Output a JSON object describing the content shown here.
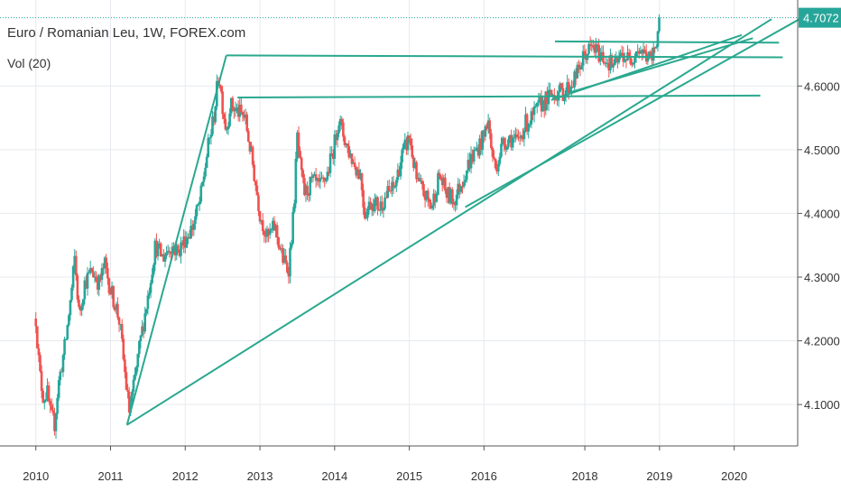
{
  "header": {
    "title": "Euro / Romanian Leu, 1W, FOREX.com",
    "indicator": "Vol (20)"
  },
  "chart_data": {
    "type": "candlestick",
    "symbol": "Euro / Romanian Leu",
    "interval": "1W",
    "source": "FOREX.com",
    "x_tick_labels": [
      "2010",
      "2011",
      "2012",
      "2013",
      "2014",
      "2015",
      "2016",
      "2018",
      "2019",
      "2020"
    ],
    "x_ticks": [
      2010.0,
      2011.0,
      2012.0,
      2013.0,
      2014.0,
      2015.0,
      2016.0,
      2017.35,
      2018.35,
      2019.35
    ],
    "y_ticks": [
      4.1,
      4.2,
      4.3,
      4.4,
      4.5,
      4.6
    ],
    "y_tick_labels": [
      "4.1000",
      "4.2000",
      "4.3000",
      "4.4000",
      "4.5000",
      "4.6000"
    ],
    "xlim": [
      2009.52,
      2020.2
    ],
    "ylim": [
      4.035,
      4.735
    ],
    "grid": true,
    "last_price": 4.7072,
    "last_price_label": "4.7072",
    "colors": {
      "up": "#26a69a",
      "down": "#ef5350",
      "lines": "#2aa88f",
      "grid": "#e6eaee",
      "price_tag": "#26a69a"
    },
    "price_path": [
      [
        2010.0,
        4.235
      ],
      [
        2010.05,
        4.15
      ],
      [
        2010.1,
        4.11
      ],
      [
        2010.15,
        4.12
      ],
      [
        2010.2,
        4.08
      ],
      [
        2010.25,
        4.07
      ],
      [
        2010.3,
        4.13
      ],
      [
        2010.4,
        4.2
      ],
      [
        2010.48,
        4.28
      ],
      [
        2010.52,
        4.33
      ],
      [
        2010.58,
        4.24
      ],
      [
        2010.65,
        4.29
      ],
      [
        2010.75,
        4.31
      ],
      [
        2010.85,
        4.29
      ],
      [
        2010.92,
        4.32
      ],
      [
        2011.0,
        4.28
      ],
      [
        2011.08,
        4.25
      ],
      [
        2011.12,
        4.23
      ],
      [
        2011.2,
        4.14
      ],
      [
        2011.25,
        4.09
      ],
      [
        2011.3,
        4.12
      ],
      [
        2011.4,
        4.2
      ],
      [
        2011.5,
        4.27
      ],
      [
        2011.6,
        4.35
      ],
      [
        2011.7,
        4.33
      ],
      [
        2011.8,
        4.35
      ],
      [
        2011.9,
        4.34
      ],
      [
        2012.0,
        4.36
      ],
      [
        2012.1,
        4.38
      ],
      [
        2012.2,
        4.42
      ],
      [
        2012.3,
        4.5
      ],
      [
        2012.38,
        4.55
      ],
      [
        2012.45,
        4.62
      ],
      [
        2012.5,
        4.57
      ],
      [
        2012.55,
        4.53
      ],
      [
        2012.6,
        4.57
      ],
      [
        2012.7,
        4.56
      ],
      [
        2012.8,
        4.55
      ],
      [
        2012.9,
        4.48
      ],
      [
        2013.0,
        4.4
      ],
      [
        2013.1,
        4.36
      ],
      [
        2013.2,
        4.38
      ],
      [
        2013.3,
        4.33
      ],
      [
        2013.38,
        4.31
      ],
      [
        2013.45,
        4.4
      ],
      [
        2013.5,
        4.52
      ],
      [
        2013.55,
        4.46
      ],
      [
        2013.6,
        4.43
      ],
      [
        2013.7,
        4.45
      ],
      [
        2013.8,
        4.44
      ],
      [
        2013.9,
        4.46
      ],
      [
        2014.0,
        4.51
      ],
      [
        2014.05,
        4.55
      ],
      [
        2014.15,
        4.51
      ],
      [
        2014.25,
        4.48
      ],
      [
        2014.35,
        4.46
      ],
      [
        2014.4,
        4.4
      ],
      [
        2014.5,
        4.42
      ],
      [
        2014.6,
        4.41
      ],
      [
        2014.7,
        4.43
      ],
      [
        2014.8,
        4.44
      ],
      [
        2014.9,
        4.49
      ],
      [
        2015.0,
        4.52
      ],
      [
        2015.1,
        4.45
      ],
      [
        2015.2,
        4.43
      ],
      [
        2015.3,
        4.41
      ],
      [
        2015.4,
        4.46
      ],
      [
        2015.5,
        4.43
      ],
      [
        2015.6,
        4.42
      ],
      [
        2015.7,
        4.45
      ],
      [
        2015.8,
        4.48
      ],
      [
        2015.9,
        4.5
      ],
      [
        2016.0,
        4.52
      ],
      [
        2016.05,
        4.55
      ],
      [
        2016.1,
        4.5
      ],
      [
        2016.15,
        4.47
      ],
      [
        2016.25,
        4.51
      ],
      [
        2016.35,
        4.52
      ],
      [
        2016.45,
        4.51
      ],
      [
        2016.55,
        4.54
      ],
      [
        2016.65,
        4.55
      ],
      [
        2016.75,
        4.57
      ],
      [
        2016.85,
        4.58
      ],
      [
        2016.95,
        4.59
      ],
      [
        2017.05,
        4.59
      ],
      [
        2017.15,
        4.6
      ],
      [
        2017.25,
        4.62
      ],
      [
        2017.35,
        4.65
      ],
      [
        2017.45,
        4.66
      ],
      [
        2017.55,
        4.65
      ],
      [
        2017.65,
        4.64
      ],
      [
        2017.75,
        4.63
      ],
      [
        2017.85,
        4.65
      ],
      [
        2017.95,
        4.64
      ],
      [
        2018.05,
        4.66
      ],
      [
        2018.15,
        4.65
      ],
      [
        2018.25,
        4.64
      ],
      [
        2018.35,
        4.7
      ]
    ],
    "trendlines": [
      [
        [
          2011.22,
          4.068
        ],
        [
          2012.55,
          4.648
        ]
      ],
      [
        [
          2012.55,
          4.648
        ],
        [
          2020.0,
          4.645
        ]
      ],
      [
        [
          2011.22,
          4.068
        ],
        [
          2019.85,
          4.705
        ]
      ],
      [
        [
          2015.75,
          4.41
        ],
        [
          2020.3,
          4.71
        ]
      ],
      [
        [
          2012.7,
          4.582
        ],
        [
          2019.7,
          4.585
        ]
      ],
      [
        [
          2016.9,
          4.578
        ],
        [
          2019.45,
          4.68
        ]
      ],
      [
        [
          2016.95,
          4.67
        ],
        [
          2019.95,
          4.668
        ]
      ],
      [
        [
          2017.15,
          4.59
        ],
        [
          2019.6,
          4.675
        ]
      ]
    ]
  }
}
